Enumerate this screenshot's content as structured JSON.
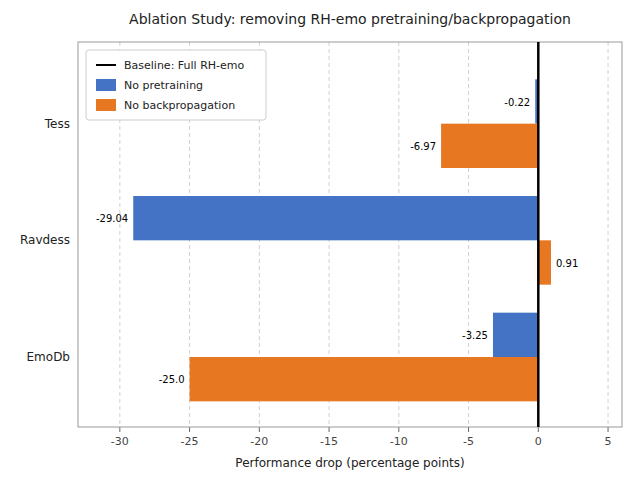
{
  "chart_data": {
    "type": "bar",
    "orientation": "horizontal",
    "title": "Ablation Study: removing RH-emo pretraining/backpropagation",
    "x_label": "Performance drop (percentage points)",
    "categories": [
      "Tess",
      "Ravdess",
      "EmoDb"
    ],
    "series": [
      {
        "name": "No pretraining",
        "color": "#4472C4",
        "values": [
          -0.22,
          -29.04,
          -3.25
        ],
        "value_labels": [
          "-0.22",
          "-29.04",
          "-3.25"
        ]
      },
      {
        "name": "No backpropagation",
        "color": "#E87722",
        "values": [
          -6.97,
          0.91,
          -25.0
        ],
        "value_labels": [
          "-6.97",
          "0.91",
          "-25.0"
        ]
      }
    ],
    "baseline": {
      "name": "Baseline: Full RH-emo",
      "value": 0,
      "color": "#000000"
    },
    "xlim": [
      -33,
      6
    ],
    "xticks": [
      -30,
      -25,
      -20,
      -15,
      -10,
      -5,
      0,
      5
    ],
    "grid": true,
    "legend": "upper left",
    "data_labels": true
  }
}
